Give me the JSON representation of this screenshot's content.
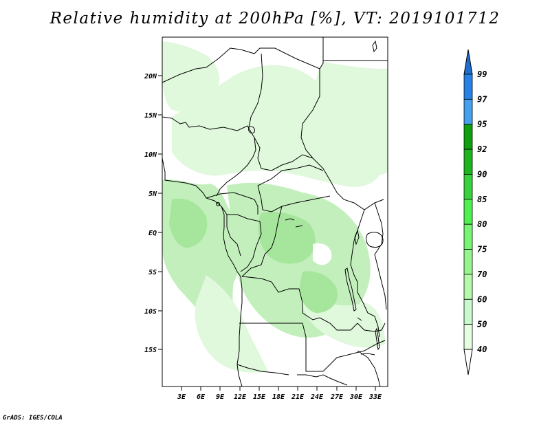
{
  "title": "Relative humidity at 200hPa [%], VT: 2019101712",
  "credit": "GrADS: IGES/COLA",
  "map": {
    "lat_ticks": [
      "20N",
      "15N",
      "10N",
      "5N",
      "EQ",
      "5S",
      "10S",
      "15S"
    ],
    "lon_ticks": [
      "3E",
      "6E",
      "9E",
      "12E",
      "15E",
      "18E",
      "21E",
      "24E",
      "27E",
      "30E",
      "33E"
    ]
  },
  "legend": {
    "levels": [
      "99",
      "97",
      "95",
      "92",
      "90",
      "85",
      "80",
      "75",
      "70",
      "60",
      "50",
      "40"
    ],
    "colors": [
      "#1e6ed2",
      "#2882e6",
      "#46a0f0",
      "#0fa00f",
      "#1eb41e",
      "#37d23c",
      "#50f050",
      "#78f573",
      "#96f58c",
      "#b4faaa",
      "#c8facd",
      "#e6ffe1"
    ]
  },
  "colors": {
    "land_line": "#000000",
    "humid_low": "#e0f8dc",
    "humid_mid": "#c3efbd",
    "humid_high": "#a6e69c"
  }
}
